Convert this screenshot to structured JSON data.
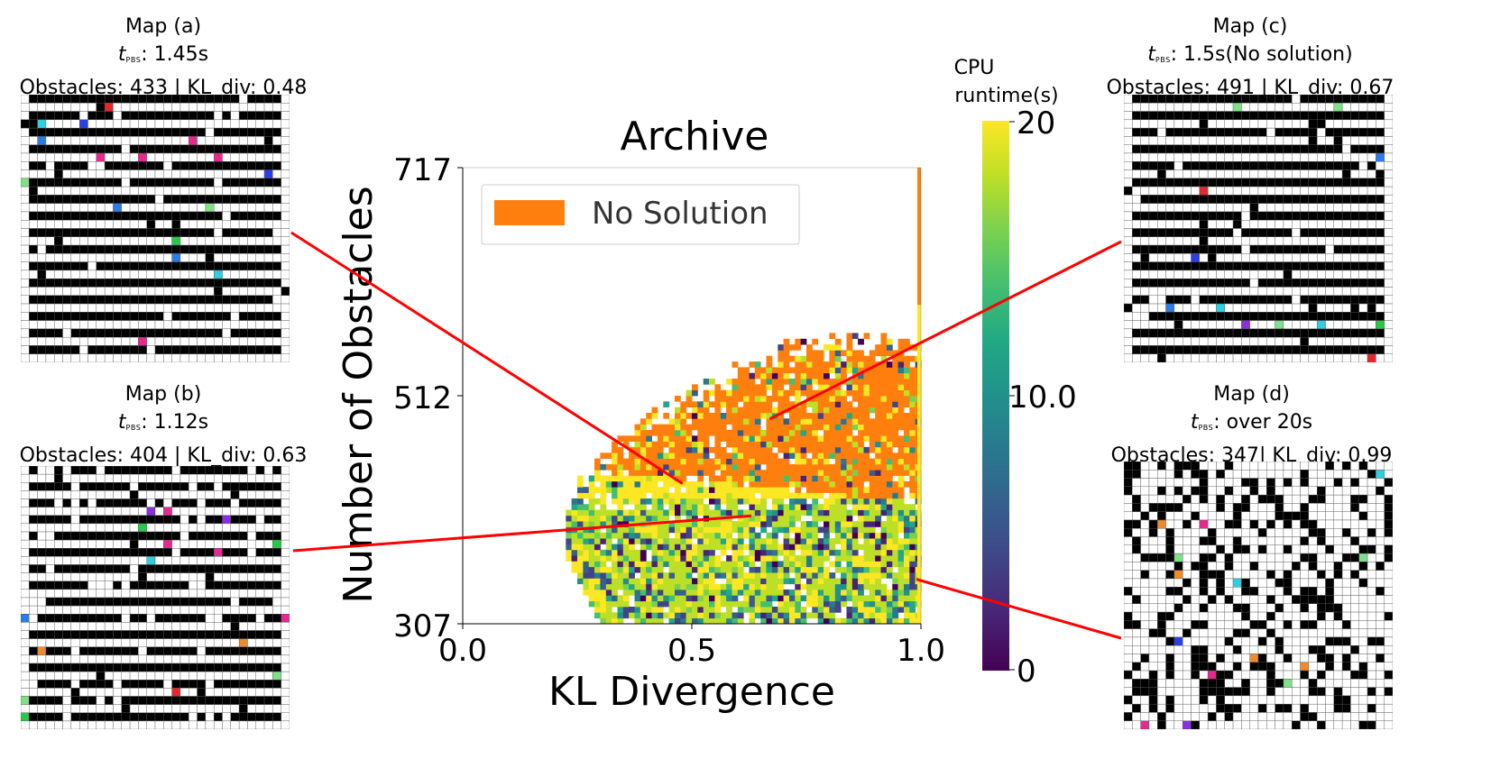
{
  "figure": {
    "title": "Archive",
    "colorbar": {
      "label_line1": "CPU",
      "label_line2": "runtime(s)",
      "ticks": [
        "20",
        "10.0",
        "0"
      ],
      "min": 0,
      "max": 20
    },
    "legend": {
      "label": "No Solution",
      "color": "#ff7f0e"
    }
  },
  "maps": [
    {
      "id": "a",
      "title": "Map (a)",
      "t_sym": "t",
      "t_sub": "PBS",
      "t_value": ": 1.45s",
      "stats": "Obstacles: 433 | KL_div: 0.48",
      "pattern": "stripes"
    },
    {
      "id": "b",
      "title": "Map (b)",
      "t_sym": "t",
      "t_sub": "PBS",
      "t_value": ": 1.12s",
      "stats": "Obstacles: 404 | KL_div: 0.63",
      "pattern": "stripes-gaps"
    },
    {
      "id": "c",
      "title": "Map (c)",
      "t_sym": "t",
      "t_sub": "PBS",
      "t_value": ": 1.5s(No solution)",
      "stats": "Obstacles: 491 | KL_div: 0.67",
      "pattern": "stripes-dense"
    },
    {
      "id": "d",
      "title": "Map (d)",
      "t_sym": "t",
      "t_sub": "PBS",
      "t_value": ": over 20s",
      "stats": "Obstacles: 347| KL_div: 0.99",
      "pattern": "random"
    }
  ],
  "chart_data": {
    "type": "heatmap",
    "title": "Archive",
    "xlabel": "KL Divergence",
    "ylabel": "Number of Obstacles",
    "xlim": [
      0.0,
      1.0
    ],
    "ylim": [
      307,
      717
    ],
    "xticks": [
      "0.0",
      "0.5",
      "1.0"
    ],
    "yticks": [
      "717",
      "512",
      "307"
    ],
    "color_metric": "CPU runtime(s)",
    "color_range": [
      0,
      20
    ],
    "no_solution_color": "#ff7f0e",
    "annotated_points": [
      {
        "map": "a",
        "kl": 0.48,
        "obstacles": 433
      },
      {
        "map": "b",
        "kl": 0.63,
        "obstacles": 404
      },
      {
        "map": "c",
        "kl": 0.67,
        "obstacles": 491
      },
      {
        "map": "d",
        "kl": 0.99,
        "obstacles": 347
      }
    ]
  }
}
